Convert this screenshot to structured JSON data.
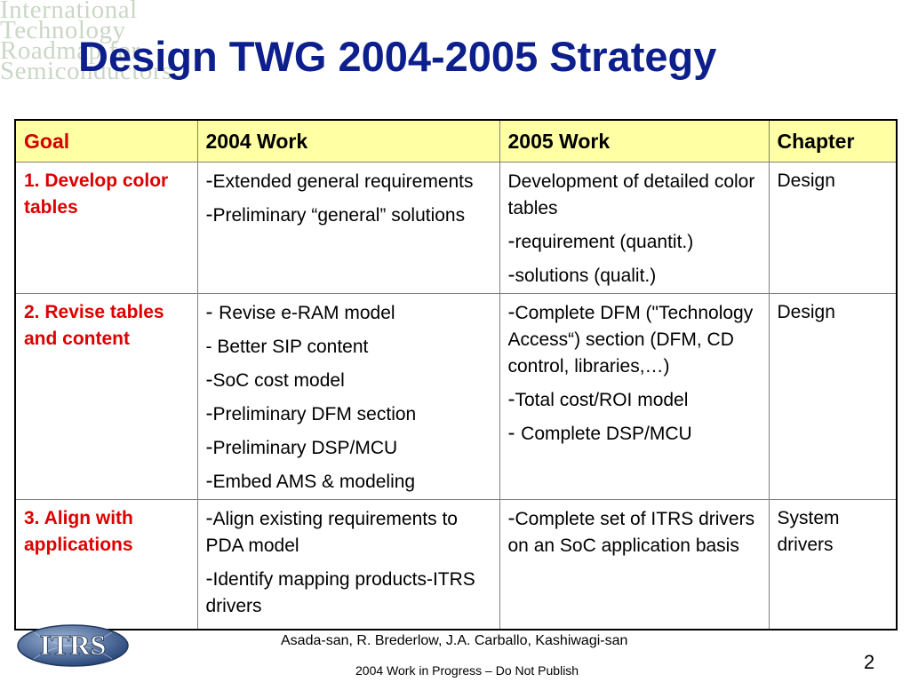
{
  "slide": {
    "title": "Design TWG 2004-2005 Strategy",
    "watermark_lines": [
      "International",
      "Technology",
      "Roadmap for",
      "Semiconductors"
    ],
    "logo_text": "ITRS",
    "authors": "Asada-san, R. Brederlow, J.A. Carballo, Kashiwagi-san",
    "notice": "2004 Work in Progress – Do Not Publish",
    "page_number": "2"
  },
  "table": {
    "headers": {
      "goal": "Goal",
      "work2004": "2004 Work",
      "work2005": "2005 Work",
      "chapter": "Chapter"
    },
    "rows": [
      {
        "goal": "1. Develop color tables",
        "work2004": [
          {
            "dash": "-",
            "text": "Extended general requirements"
          },
          {
            "dash": "-",
            "text": "Preliminary “general” solutions"
          }
        ],
        "work2005": [
          {
            "dash": "",
            "text": "Development of detailed color tables"
          },
          {
            "dash": "-",
            "text": "requirement (quantit.)"
          },
          {
            "dash": "-",
            "text": "solutions (qualit.)"
          }
        ],
        "chapter": "Design"
      },
      {
        "goal": "2. Revise tables and content",
        "work2004": [
          {
            "dash": "- ",
            "text": "Revise e-RAM model"
          },
          {
            "dash": "",
            "text": "- Better SIP content"
          },
          {
            "dash": "-",
            "text": "SoC cost model"
          },
          {
            "dash": "-",
            "text": "Preliminary DFM section"
          },
          {
            "dash": "-",
            "text": "Preliminary DSP/MCU"
          },
          {
            "dash": "-",
            "text": "Embed AMS & modeling"
          }
        ],
        "work2005": [
          {
            "dash": "-",
            "text": "Complete DFM (\"Technology Access“) section (DFM, CD control, libraries,…)"
          },
          {
            "dash": "-",
            "text": "Total cost/ROI model"
          },
          {
            "dash": "- ",
            "text": "Complete DSP/MCU"
          }
        ],
        "chapter": "Design"
      },
      {
        "goal": "3. Align with applications",
        "work2004": [
          {
            "dash": "-",
            "text": "Align existing requirements to PDA model"
          },
          {
            "dash": "-",
            "text": "Identify mapping products-ITRS drivers"
          }
        ],
        "work2005": [
          {
            "dash": "-",
            "text": "Complete set of ITRS drivers on an SoC application basis"
          }
        ],
        "chapter": "System drivers"
      }
    ]
  },
  "colors": {
    "title": "#0c1f8c",
    "goal_text": "#dd0000",
    "header_bg": "#ffffa3",
    "logo_globe": "#3a5a8c"
  }
}
